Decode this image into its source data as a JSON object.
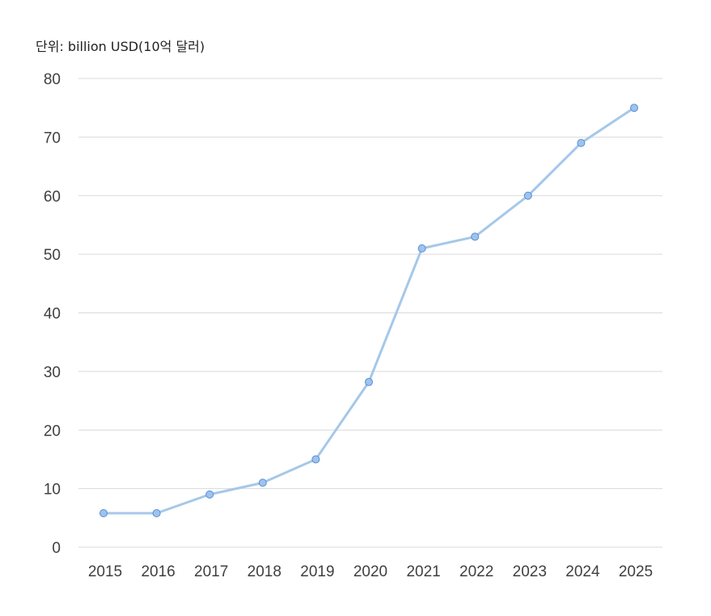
{
  "unit_label": "단위: billion USD(10억 달러)",
  "colors": {
    "line": "#a5c8e8",
    "marker_fill": "#9dc3ee",
    "marker_stroke": "#5b8fcf",
    "grid": "#d9d9d9",
    "tick_text": "#404040"
  },
  "chart_data": {
    "type": "line",
    "title": "",
    "xlabel": "",
    "ylabel": "",
    "x": [
      "2015",
      "2016",
      "2017",
      "2018",
      "2019",
      "2020",
      "2021",
      "2022",
      "2023",
      "2024",
      "2025"
    ],
    "series": [
      {
        "values": [
          5.8,
          5.8,
          9.0,
          11.0,
          15.0,
          28.2,
          51.0,
          53.0,
          60.0,
          69.0,
          75.0
        ]
      }
    ],
    "ylim": [
      0,
      80
    ],
    "yticks": [
      "0",
      "10",
      "20",
      "30",
      "40",
      "50",
      "60",
      "70",
      "80"
    ],
    "grid": true,
    "legend": "none",
    "markers": true
  }
}
